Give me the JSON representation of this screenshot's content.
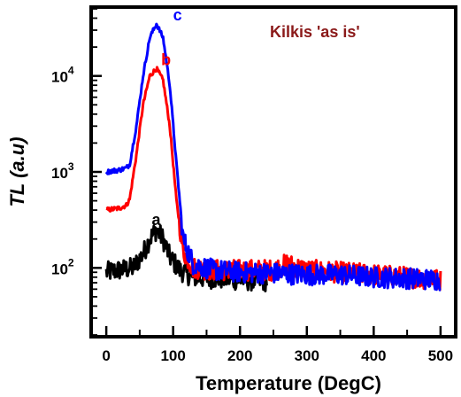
{
  "chart_data": {
    "type": "line",
    "annotation": "Kilkis  'as is'",
    "xlabel": "Temperature (DegC)",
    "ylabel": "TL (a.u)",
    "xlim": [
      -20,
      520
    ],
    "ylim": [
      20,
      50000
    ],
    "yscale": "log",
    "x_ticks": [
      "0",
      "100",
      "200",
      "300",
      "400",
      "500"
    ],
    "y_ticks": [
      {
        "value": 100,
        "base": "10",
        "exp": "2"
      },
      {
        "value": 1000,
        "base": "10",
        "exp": "3"
      },
      {
        "value": 10000,
        "base": "10",
        "exp": "4"
      }
    ],
    "grid": false,
    "series": [
      {
        "name": "a",
        "color": "#000000",
        "x": [
          0,
          20,
          40,
          55,
          65,
          75,
          85,
          95,
          110,
          130,
          160,
          200,
          240
        ],
        "y": [
          90,
          95,
          100,
          140,
          200,
          250,
          200,
          130,
          95,
          80,
          78,
          75,
          73
        ]
      },
      {
        "name": "b",
        "color": "#ff0000",
        "x": [
          0,
          20,
          30,
          35,
          45,
          55,
          65,
          75,
          85,
          95,
          105,
          115,
          130,
          160,
          200,
          250,
          270,
          300,
          350,
          400,
          450,
          500
        ],
        "y": [
          400,
          420,
          450,
          520,
          1500,
          5000,
          10000,
          12000,
          9000,
          3000,
          500,
          150,
          100,
          95,
          95,
          95,
          110,
          95,
          90,
          85,
          80,
          75
        ]
      },
      {
        "name": "c",
        "color": "#0000ff",
        "x": [
          0,
          20,
          30,
          35,
          45,
          55,
          65,
          75,
          85,
          95,
          105,
          115,
          130,
          160,
          200,
          250,
          300,
          350,
          400,
          450,
          500
        ],
        "y": [
          1000,
          1050,
          1100,
          1200,
          3000,
          10000,
          25000,
          35000,
          25000,
          8000,
          1200,
          200,
          110,
          95,
          90,
          88,
          85,
          85,
          80,
          78,
          75
        ]
      }
    ]
  }
}
